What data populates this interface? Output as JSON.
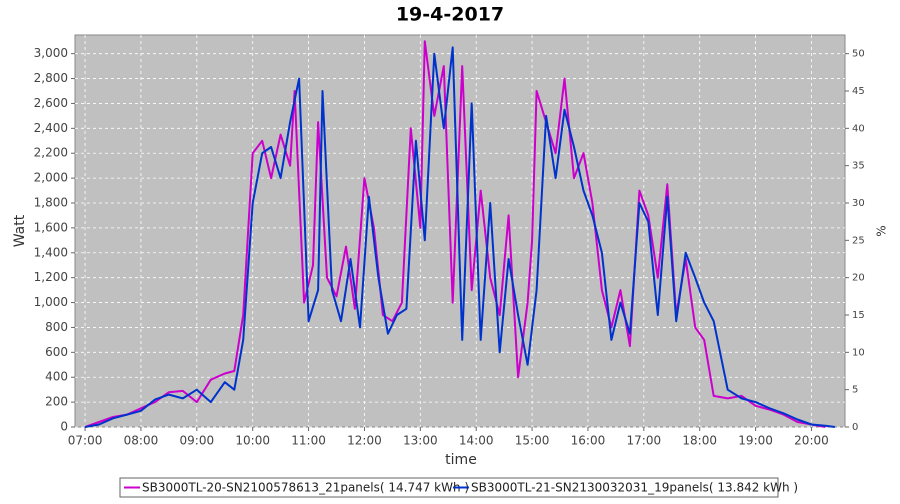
{
  "chart_data": {
    "type": "line",
    "title": "19-4-2017",
    "xlabel": "time",
    "ylabel": "Watt",
    "y2label": "%",
    "xlim": [
      6.82,
      20.6
    ],
    "xticks": [
      {
        "value": 7,
        "label": "07:00"
      },
      {
        "value": 8,
        "label": "08:00"
      },
      {
        "value": 9,
        "label": "09:00"
      },
      {
        "value": 10,
        "label": "10:00"
      },
      {
        "value": 11,
        "label": "11:00"
      },
      {
        "value": 12,
        "label": "12:00"
      },
      {
        "value": 13,
        "label": "13:00"
      },
      {
        "value": 14,
        "label": "14:00"
      },
      {
        "value": 15,
        "label": "15:00"
      },
      {
        "value": 16,
        "label": "16:00"
      },
      {
        "value": 17,
        "label": "17:00"
      },
      {
        "value": 18,
        "label": "18:00"
      },
      {
        "value": 19,
        "label": "19:00"
      },
      {
        "value": 20,
        "label": "20:00"
      }
    ],
    "ylim": [
      0,
      3150
    ],
    "yticks": [
      0,
      200,
      400,
      600,
      800,
      {
        "value": 1000,
        "label": "1,000"
      },
      {
        "value": 1200,
        "label": "1,200"
      },
      {
        "value": 1400,
        "label": "1,400"
      },
      {
        "value": 1600,
        "label": "1,600"
      },
      {
        "value": 1800,
        "label": "1,800"
      },
      {
        "value": 2000,
        "label": "2,000"
      },
      {
        "value": 2200,
        "label": "2,200"
      },
      {
        "value": 2400,
        "label": "2,400"
      },
      {
        "value": 2600,
        "label": "2,600"
      },
      {
        "value": 2800,
        "label": "2,800"
      },
      {
        "value": 3000,
        "label": "3,000"
      }
    ],
    "y2lim": [
      0,
      52.5
    ],
    "y2ticks": [
      0,
      5,
      10,
      15,
      20,
      25,
      30,
      35,
      40,
      45,
      50
    ],
    "grid": true,
    "legend": "bottom",
    "series": [
      {
        "name": "SB3000TL-20-SN2100578613_21panels( 14.747 kWh )",
        "color": "#cc00cc",
        "x": [
          7.0,
          7.25,
          7.5,
          7.75,
          8.0,
          8.25,
          8.5,
          8.75,
          9.0,
          9.25,
          9.5,
          9.67,
          9.83,
          10.0,
          10.17,
          10.33,
          10.5,
          10.67,
          10.75,
          10.92,
          11.08,
          11.17,
          11.33,
          11.5,
          11.67,
          11.83,
          12.0,
          12.17,
          12.33,
          12.5,
          12.67,
          12.83,
          13.0,
          13.08,
          13.25,
          13.42,
          13.58,
          13.75,
          13.92,
          14.08,
          14.25,
          14.42,
          14.58,
          14.75,
          14.92,
          15.0,
          15.08,
          15.25,
          15.42,
          15.58,
          15.75,
          15.92,
          16.08,
          16.25,
          16.42,
          16.58,
          16.75,
          16.92,
          17.08,
          17.25,
          17.42,
          17.58,
          17.75,
          17.92,
          18.08,
          18.25,
          18.5,
          18.75,
          19.0,
          19.25,
          19.5,
          19.75,
          20.0,
          20.25
        ],
        "values": [
          0,
          40,
          80,
          100,
          150,
          200,
          280,
          290,
          200,
          380,
          430,
          450,
          900,
          2200,
          2300,
          2000,
          2350,
          2100,
          2700,
          1000,
          1300,
          2450,
          1200,
          1050,
          1450,
          950,
          2000,
          1600,
          900,
          850,
          1000,
          2400,
          1600,
          3100,
          2500,
          2900,
          1000,
          2900,
          1100,
          1900,
          1200,
          900,
          1700,
          400,
          1000,
          1500,
          2700,
          2450,
          2200,
          2800,
          2000,
          2200,
          1800,
          1100,
          800,
          1100,
          650,
          1900,
          1700,
          1200,
          1950,
          900,
          1350,
          800,
          700,
          250,
          230,
          250,
          170,
          140,
          100,
          40,
          20,
          0
        ]
      },
      {
        "name": "SB3000TL-21-SN2130032031_19panels( 13.842 kWh )",
        "color": "#0033cc",
        "x": [
          7.0,
          7.25,
          7.5,
          7.75,
          8.0,
          8.25,
          8.5,
          8.75,
          9.0,
          9.25,
          9.5,
          9.67,
          9.83,
          10.0,
          10.17,
          10.33,
          10.5,
          10.67,
          10.83,
          11.0,
          11.17,
          11.25,
          11.42,
          11.58,
          11.75,
          11.92,
          12.08,
          12.25,
          12.42,
          12.58,
          12.75,
          12.92,
          13.08,
          13.25,
          13.42,
          13.58,
          13.75,
          13.92,
          14.08,
          14.25,
          14.42,
          14.58,
          14.75,
          14.92,
          15.08,
          15.25,
          15.42,
          15.58,
          15.75,
          15.92,
          16.08,
          16.25,
          16.42,
          16.58,
          16.75,
          16.92,
          17.08,
          17.25,
          17.42,
          17.58,
          17.75,
          17.92,
          18.08,
          18.25,
          18.5,
          18.75,
          19.0,
          19.25,
          19.5,
          19.75,
          20.0,
          20.25,
          20.42
        ],
        "values": [
          0,
          20,
          70,
          100,
          130,
          220,
          260,
          230,
          300,
          200,
          360,
          300,
          700,
          1800,
          2200,
          2250,
          2000,
          2450,
          2800,
          850,
          1100,
          2700,
          1100,
          850,
          1350,
          800,
          1850,
          1200,
          750,
          900,
          950,
          2300,
          1500,
          3000,
          2400,
          3050,
          700,
          2600,
          700,
          1800,
          600,
          1350,
          900,
          500,
          1100,
          2500,
          2000,
          2550,
          2250,
          1900,
          1700,
          1400,
          700,
          1000,
          750,
          1800,
          1650,
          900,
          1850,
          850,
          1400,
          1200,
          1000,
          850,
          300,
          230,
          200,
          150,
          110,
          60,
          20,
          10,
          0
        ]
      }
    ]
  }
}
